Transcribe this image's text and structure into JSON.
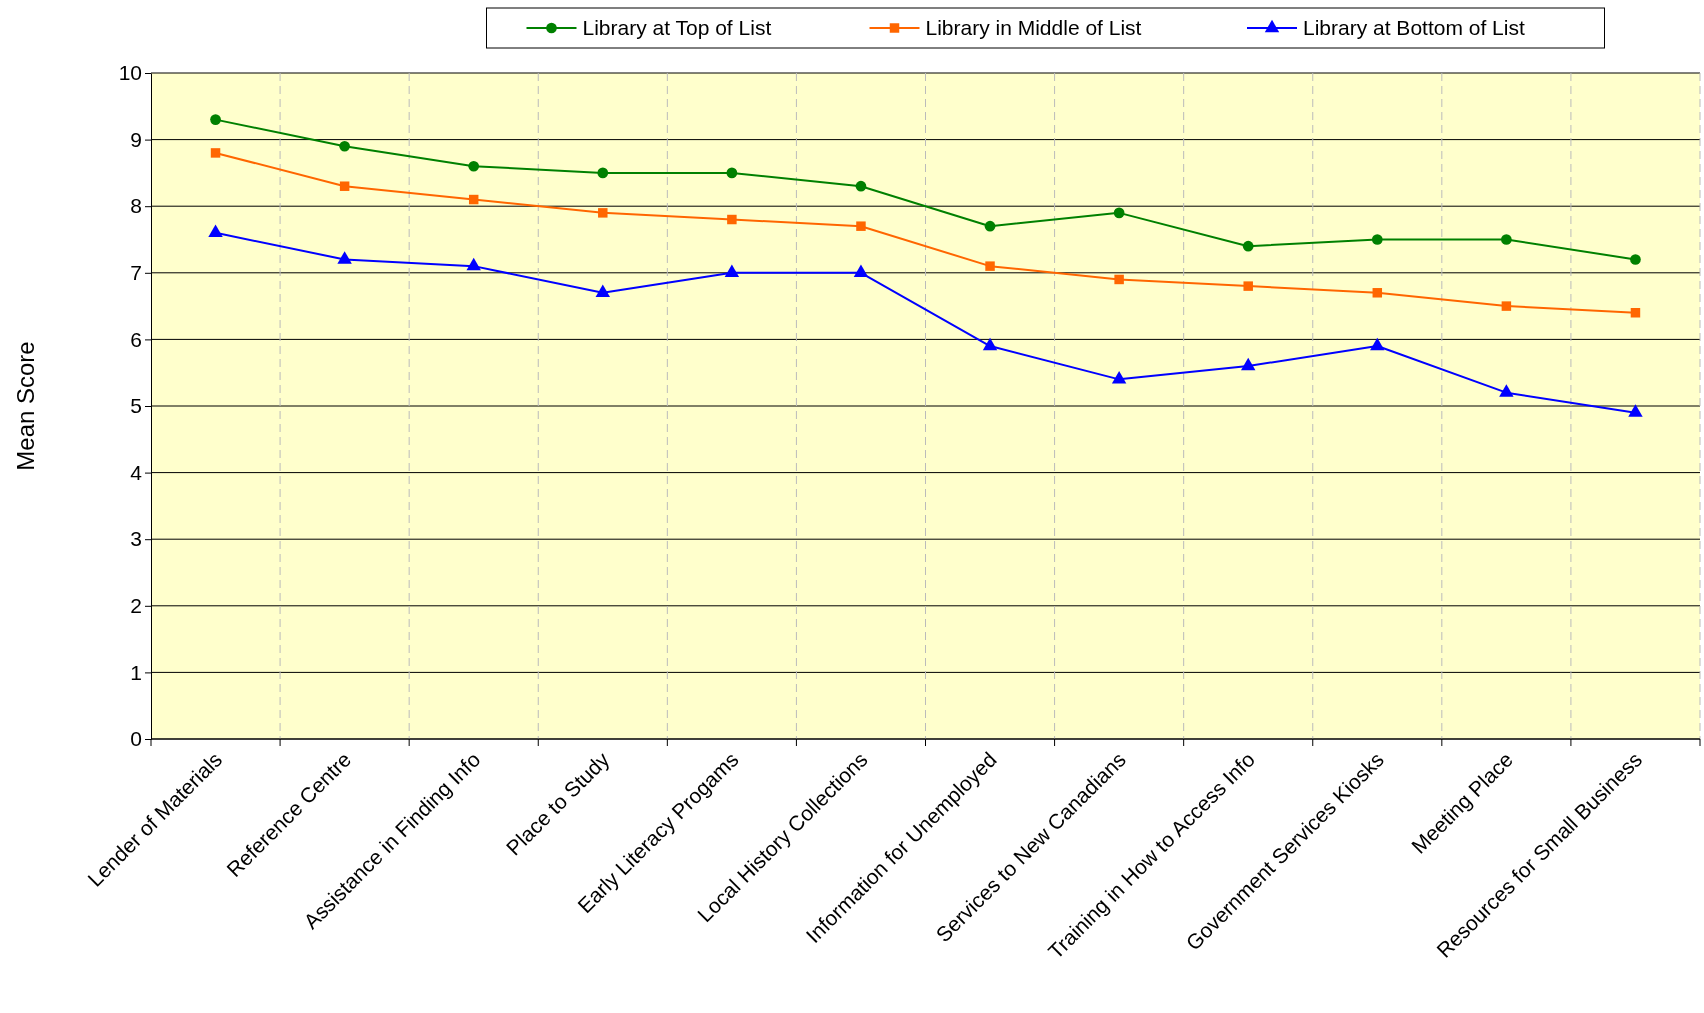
{
  "chart_data": {
    "type": "line",
    "ylabel": "Mean Score",
    "categories": [
      "Lender of Materials",
      "Reference Centre",
      "Assistance in Finding Info",
      "Place to Study",
      "Early Literacy Progams",
      "Local History Collections",
      "Information for Unemployed",
      "Services to New Canadians",
      "Training in How to Access Info",
      "Government Services Kiosks",
      "Meeting Place",
      "Resources for Small Business"
    ],
    "series": [
      {
        "name": "Library at Top of List",
        "color": "#008000",
        "marker": "circle",
        "values": [
          9.3,
          8.9,
          8.6,
          8.5,
          8.5,
          8.3,
          7.7,
          7.9,
          7.4,
          7.5,
          7.5,
          7.2
        ]
      },
      {
        "name": "Library in Middle of List",
        "color": "#ff6600",
        "marker": "square",
        "values": [
          8.8,
          8.3,
          8.1,
          7.9,
          7.8,
          7.7,
          7.1,
          6.9,
          6.8,
          6.7,
          6.5,
          6.4
        ]
      },
      {
        "name": "Library at Bottom of List",
        "color": "#0000ff",
        "marker": "triangle",
        "values": [
          7.6,
          7.2,
          7.1,
          6.7,
          7.0,
          7.0,
          5.9,
          5.4,
          5.6,
          5.9,
          5.2,
          4.9
        ]
      }
    ],
    "ylim": [
      0,
      10
    ],
    "yticks": [
      0,
      1,
      2,
      3,
      4,
      5,
      6,
      7,
      8,
      9,
      10
    ],
    "grid": true,
    "legend": "top",
    "line_style": "solid"
  }
}
